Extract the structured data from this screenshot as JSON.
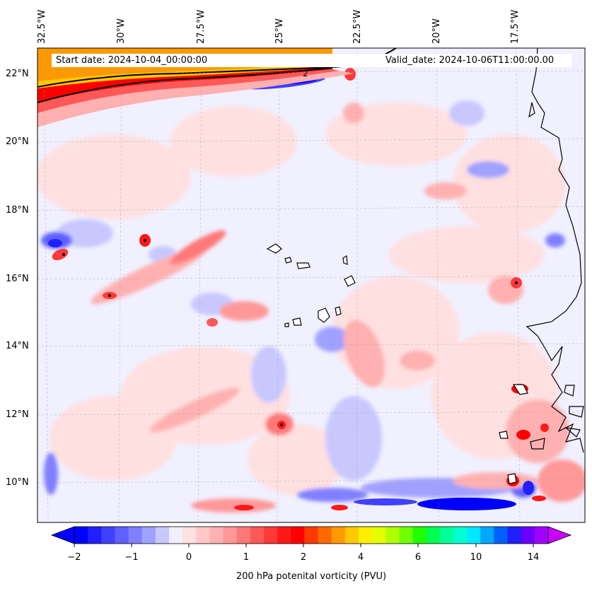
{
  "header": {
    "start_label": "Start date: 2024-10-04_00:00:00",
    "valid_label": "Valid_date: 2024-10-06T11:00:00.00"
  },
  "axes": {
    "longitude_labels": [
      "32.5°W",
      "30°W",
      "27.5°W",
      "25°W",
      "22.5°W",
      "20°W",
      "17.5°W"
    ],
    "latitude_labels": [
      "22°N",
      "20°N",
      "18°N",
      "16°N",
      "14°N",
      "12°N",
      "10°N"
    ]
  },
  "map": {
    "lon_range": [
      -33,
      -15
    ],
    "lat_range": [
      8.8,
      22.8
    ],
    "contour_label": "2",
    "background_color": "#f0f0ff"
  },
  "colorbar": {
    "title": "200 hPa potenital vorticity (PVU)",
    "tick_labels": [
      "−2",
      "−1",
      "0",
      "1",
      "2",
      "4",
      "6",
      "10",
      "14"
    ],
    "colors": [
      "#0000ff",
      "#2020ff",
      "#4040ff",
      "#6060ff",
      "#8080ff",
      "#a0a0ff",
      "#c8c8ff",
      "#f0f0ff",
      "#ffe0e0",
      "#ffc8c8",
      "#ffb0b0",
      "#ff9898",
      "#ff7878",
      "#ff5858",
      "#ff3838",
      "#ff1818",
      "#ff0000",
      "#ff3a00",
      "#ff6a00",
      "#ff9900",
      "#ffc800",
      "#ffee00",
      "#e4ff00",
      "#b0ff00",
      "#70ff00",
      "#20ff00",
      "#00ff50",
      "#00ff99",
      "#00ffd0",
      "#00e8ff",
      "#00a8ff",
      "#0060ff",
      "#2020ff",
      "#6a00ff",
      "#a000ff"
    ],
    "arrow_colors": [
      "#0000ff",
      "#cc00ff"
    ]
  }
}
